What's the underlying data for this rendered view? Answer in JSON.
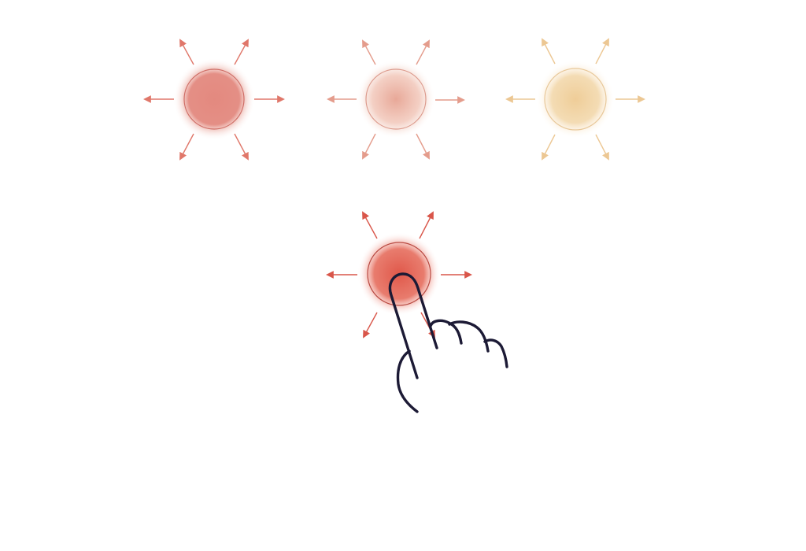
{
  "illustration": {
    "bursts": [
      {
        "role": "option",
        "color": "#e0776a",
        "core": "#e3897f",
        "halo": "#f2c9c2",
        "ring": "#cf6e66",
        "selected": false
      },
      {
        "role": "option",
        "color": "#e49c8c",
        "core": "#eab29f",
        "halo": "#f6dcd3",
        "ring": "#dc9a8c",
        "selected": false
      },
      {
        "role": "option",
        "color": "#ecc793",
        "core": "#f1d7a8",
        "halo": "#fbecd6",
        "ring": "#e8c89a",
        "selected": false
      },
      {
        "role": "pressed",
        "color": "#d9564a",
        "core": "#e05d4f",
        "halo": "#f4b3aa",
        "ring": "#b94a42",
        "selected": true
      }
    ],
    "hand": {
      "icon": "pointing-hand-icon",
      "stroke": "#1c1a35"
    }
  }
}
